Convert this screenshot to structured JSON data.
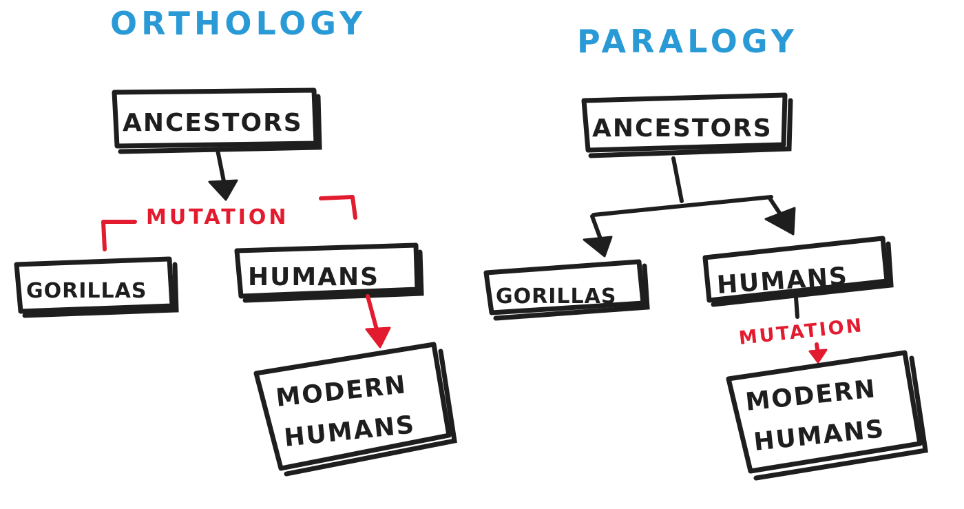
{
  "orthology": {
    "title": "ORTHOLOGY",
    "ancestors": "ANCESTORS",
    "mutation": "MUTATION",
    "gorillas": "GORILLAS",
    "humans": "HUMANS",
    "modern_humans_line1": "MODERN",
    "modern_humans_line2": "HUMANS"
  },
  "paralogy": {
    "title": "PARALOGY",
    "ancestors": "ANCESTORS",
    "mutation": "MUTATION",
    "gorillas": "GORILLAS",
    "humans": "HUMANS",
    "modern_humans_line1": "MODERN",
    "modern_humans_line2": "HUMANS"
  },
  "colors": {
    "title": "#2a9ad6",
    "mutation": "#e31b2f",
    "ink": "#1e1e1e"
  }
}
